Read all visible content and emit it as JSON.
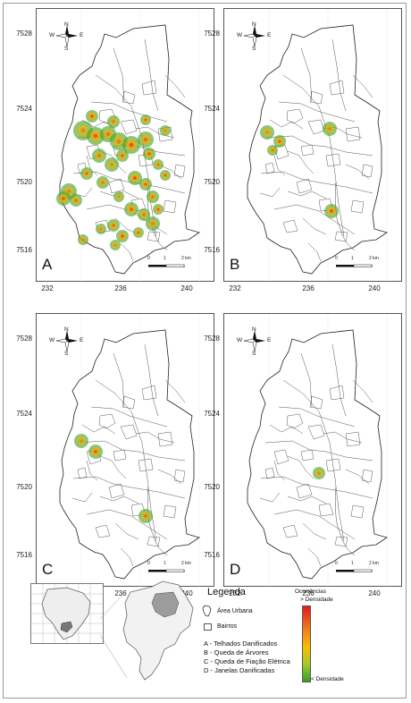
{
  "panels": [
    {
      "letter": "A"
    },
    {
      "letter": "B"
    },
    {
      "letter": "C"
    },
    {
      "letter": "D"
    }
  ],
  "axes": {
    "y_ticks": [
      "7528",
      "7524",
      "7520",
      "7516"
    ],
    "x_ticks": [
      "232",
      "236",
      "240"
    ]
  },
  "compass": {
    "n": "N",
    "s": "S",
    "e": "E",
    "w": "W"
  },
  "scale_bar": {
    "ticks": [
      "0",
      "1",
      "2 km"
    ]
  },
  "legend": {
    "title": "Legenda",
    "area_urbana": "Área Urbana",
    "bairros": "Bairros",
    "items": [
      "A - Telhados Danificados",
      "B - Queda de Árvores",
      "C - Queda de Fiação Elétrica",
      "D - Janelas Danificadas"
    ],
    "density_title": "Ocorrências",
    "density_high": "> Densidade",
    "density_low": "< Densidade"
  },
  "colors": {
    "high": "#e31a1c",
    "mid": "#f7c000",
    "low": "#4caf2a"
  }
}
